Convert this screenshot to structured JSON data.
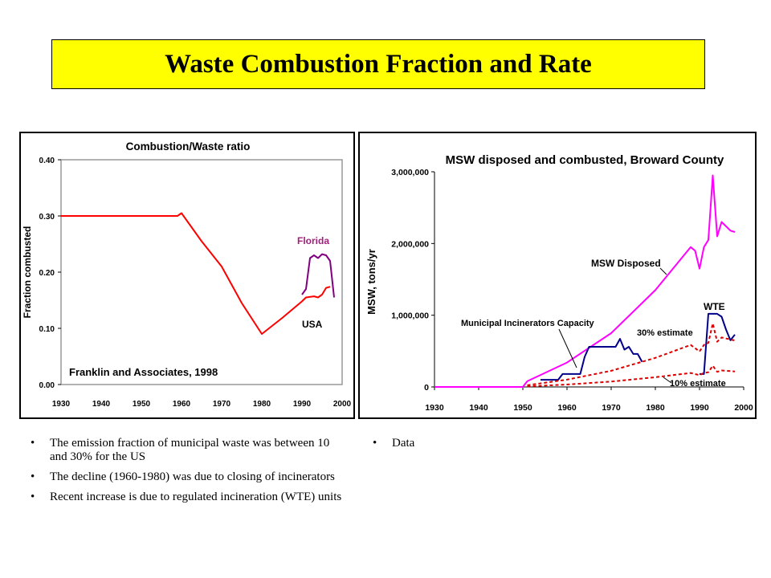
{
  "slide": {
    "title": "Waste Combustion Fraction and Rate",
    "bullets_left": [
      "The emission fraction of municipal waste was between 10 and 30% for the US",
      "The decline (1960-1980) was due to closing of incinerators",
      "Recent increase is due to regulated incineration (WTE) units"
    ],
    "bullets_right": [
      "Data"
    ]
  },
  "chart_data": [
    {
      "type": "line",
      "title": "Combustion/Waste ratio",
      "xlabel": "",
      "ylabel": "Fraction combusted",
      "xlim": [
        1930,
        2000
      ],
      "ylim": [
        0,
        0.4
      ],
      "x_ticks": [
        "1930",
        "1940",
        "1950",
        "1960",
        "1970",
        "1980",
        "1990",
        "2000"
      ],
      "y_ticks": [
        "0.00",
        "0.10",
        "0.20",
        "0.30",
        "0.40"
      ],
      "grid": false,
      "annotations": [
        "Franklin and Associates, 1998",
        "Florida",
        "USA"
      ],
      "series": [
        {
          "name": "USA",
          "color": "#ff0000",
          "style": "solid",
          "points": [
            [
              1930,
              0.3
            ],
            [
              1950,
              0.3
            ],
            [
              1959,
              0.3
            ],
            [
              1960,
              0.305
            ],
            [
              1962,
              0.285
            ],
            [
              1965,
              0.255
            ],
            [
              1970,
              0.21
            ],
            [
              1975,
              0.145
            ],
            [
              1980,
              0.09
            ],
            [
              1985,
              0.118
            ],
            [
              1990,
              0.148
            ],
            [
              1991,
              0.155
            ],
            [
              1993,
              0.157
            ],
            [
              1994,
              0.155
            ],
            [
              1995,
              0.16
            ],
            [
              1996,
              0.172
            ],
            [
              1997,
              0.174
            ]
          ]
        },
        {
          "name": "Florida",
          "color": "#800080",
          "style": "solid",
          "points": [
            [
              1990,
              0.16
            ],
            [
              1991,
              0.17
            ],
            [
              1992,
              0.225
            ],
            [
              1993,
              0.23
            ],
            [
              1994,
              0.225
            ],
            [
              1995,
              0.232
            ],
            [
              1996,
              0.23
            ],
            [
              1997,
              0.22
            ],
            [
              1998,
              0.155
            ]
          ]
        }
      ]
    },
    {
      "type": "line",
      "title": "MSW disposed and combusted, Broward County",
      "xlabel": "",
      "ylabel": "MSW, tons/yr",
      "xlim": [
        1930,
        2000
      ],
      "ylim": [
        0,
        3000000
      ],
      "x_ticks": [
        "1930",
        "1940",
        "1950",
        "1960",
        "1970",
        "1980",
        "1990",
        "2000"
      ],
      "y_ticks": [
        "0",
        "1,000,000",
        "2,000,000",
        "3,000,000"
      ],
      "grid": false,
      "annotations": [
        "MSW Disposed",
        "Municipal Incinerators Capacity",
        "WTE",
        "30% estimate",
        "10% estimate"
      ],
      "series": [
        {
          "name": "MSW Disposed",
          "color": "#ff00ff",
          "style": "solid",
          "points": [
            [
              1930,
              0
            ],
            [
              1950,
              0
            ],
            [
              1951,
              80000
            ],
            [
              1960,
              340000
            ],
            [
              1970,
              750000
            ],
            [
              1980,
              1350000
            ],
            [
              1988,
              1950000
            ],
            [
              1989,
              1900000
            ],
            [
              1990,
              1650000
            ],
            [
              1991,
              1950000
            ],
            [
              1992,
              2050000
            ],
            [
              1993,
              2950000
            ],
            [
              1994,
              2100000
            ],
            [
              1995,
              2300000
            ],
            [
              1997,
              2180000
            ],
            [
              1998,
              2160000
            ]
          ]
        },
        {
          "name": "Municipal Incinerators Capacity",
          "color": "#00008b",
          "style": "solid",
          "points": [
            [
              1954,
              100000
            ],
            [
              1958,
              100000
            ],
            [
              1959,
              180000
            ],
            [
              1963,
              180000
            ],
            [
              1964,
              420000
            ],
            [
              1965,
              560000
            ],
            [
              1971,
              560000
            ],
            [
              1972,
              670000
            ],
            [
              1973,
              520000
            ],
            [
              1974,
              560000
            ],
            [
              1975,
              460000
            ],
            [
              1976,
              460000
            ],
            [
              1977,
              350000
            ]
          ]
        },
        {
          "name": "WTE",
          "color": "#00008b",
          "style": "solid",
          "points": [
            [
              1990,
              180000
            ],
            [
              1991,
              180000
            ],
            [
              1992,
              1020000
            ],
            [
              1994,
              1020000
            ],
            [
              1995,
              980000
            ],
            [
              1996,
              800000
            ],
            [
              1997,
              650000
            ],
            [
              1998,
              730000
            ]
          ]
        },
        {
          "name": "30% estimate",
          "color": "#dd0000",
          "style": "dashed",
          "points": [
            [
              1951,
              24000
            ],
            [
              1960,
              102000
            ],
            [
              1970,
              225000
            ],
            [
              1980,
              405000
            ],
            [
              1988,
              585000
            ],
            [
              1990,
              495000
            ],
            [
              1991,
              585000
            ],
            [
              1992,
              615000
            ],
            [
              1993,
              885000
            ],
            [
              1994,
              630000
            ],
            [
              1995,
              690000
            ],
            [
              1998,
              648000
            ]
          ]
        },
        {
          "name": "10% estimate",
          "color": "#dd0000",
          "style": "dashed",
          "points": [
            [
              1951,
              8000
            ],
            [
              1960,
              34000
            ],
            [
              1970,
              75000
            ],
            [
              1980,
              135000
            ],
            [
              1988,
              195000
            ],
            [
              1990,
              165000
            ],
            [
              1991,
              195000
            ],
            [
              1992,
              205000
            ],
            [
              1993,
              295000
            ],
            [
              1994,
              210000
            ],
            [
              1995,
              230000
            ],
            [
              1998,
              216000
            ]
          ]
        }
      ]
    }
  ]
}
